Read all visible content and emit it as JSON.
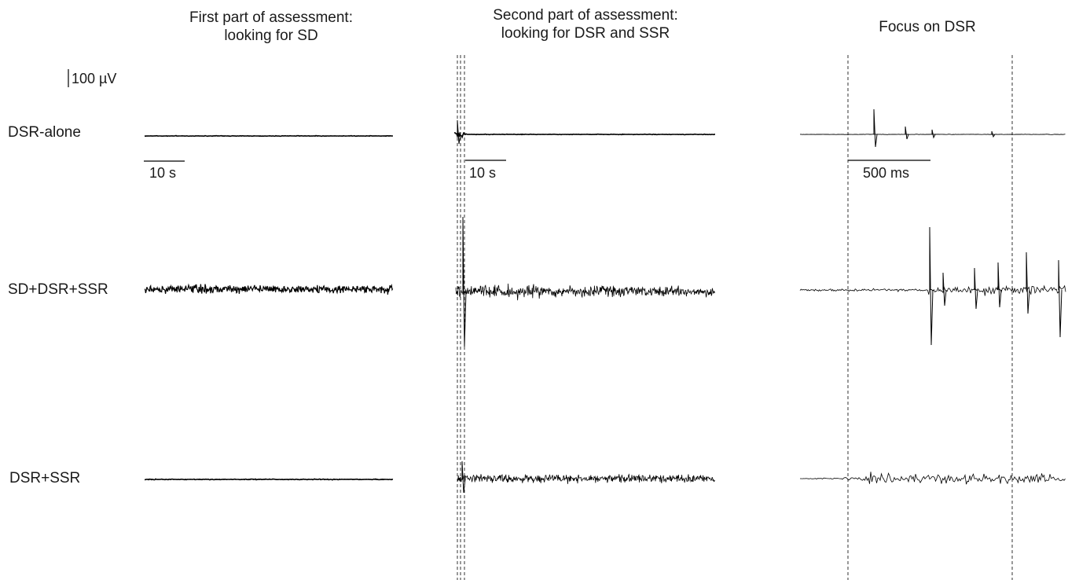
{
  "columns": {
    "first": {
      "line1": "First part of assessment:",
      "line2": "looking for SD"
    },
    "second": {
      "line1": "Second part of assessment:",
      "line2": "looking for DSR and SSR"
    },
    "third": {
      "title": "Focus on DSR"
    }
  },
  "rows": {
    "dsr_alone": "DSR-alone",
    "sd_dsr_ssr": "SD+DSR+SSR",
    "dsr_ssr": "DSR+SSR"
  },
  "scale_bars": {
    "amplitude": "100 µV",
    "time_first": "10 s",
    "time_second": "10 s",
    "time_third": "500 ms"
  },
  "colors": {
    "trace": "#000000",
    "dashed": "#333333",
    "text": "#1a1a1a"
  }
}
